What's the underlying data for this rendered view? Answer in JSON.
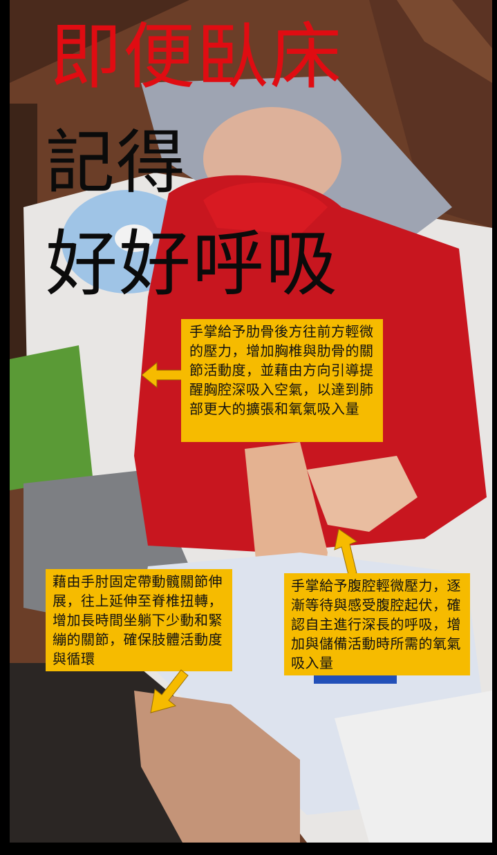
{
  "title": {
    "line1": "即便臥床",
    "line2": "記得",
    "line3": "好好呼吸"
  },
  "callouts": {
    "ribs": "手掌給予肋骨後方往前方輕微的壓力，增加胸椎與肋骨的關節活動度，並藉由方向引導提醒胸腔深吸入空氣，以達到肺部更大的擴張和氧氣吸入量",
    "hip": "藉由手肘固定帶動髖關節伸展，往上延伸至脊椎扭轉，增加長時間坐躺下少動和緊繃的關節，確保肢體活動度與循環",
    "abdomen": "手掌給予腹腔輕微壓力，逐漸等待與感受腹腔起伏，確認自主進行深長的呼吸，增加與儲備活動時所需的氧氣吸入量"
  },
  "colors": {
    "title_red": "#e00c12",
    "title_black": "#0b0b0b",
    "callout_bg": "#f6bb00",
    "arrow": "#f6bb00"
  },
  "icons": [
    "arrow-left-icon",
    "arrow-down-left-icon",
    "arrow-up-icon"
  ]
}
